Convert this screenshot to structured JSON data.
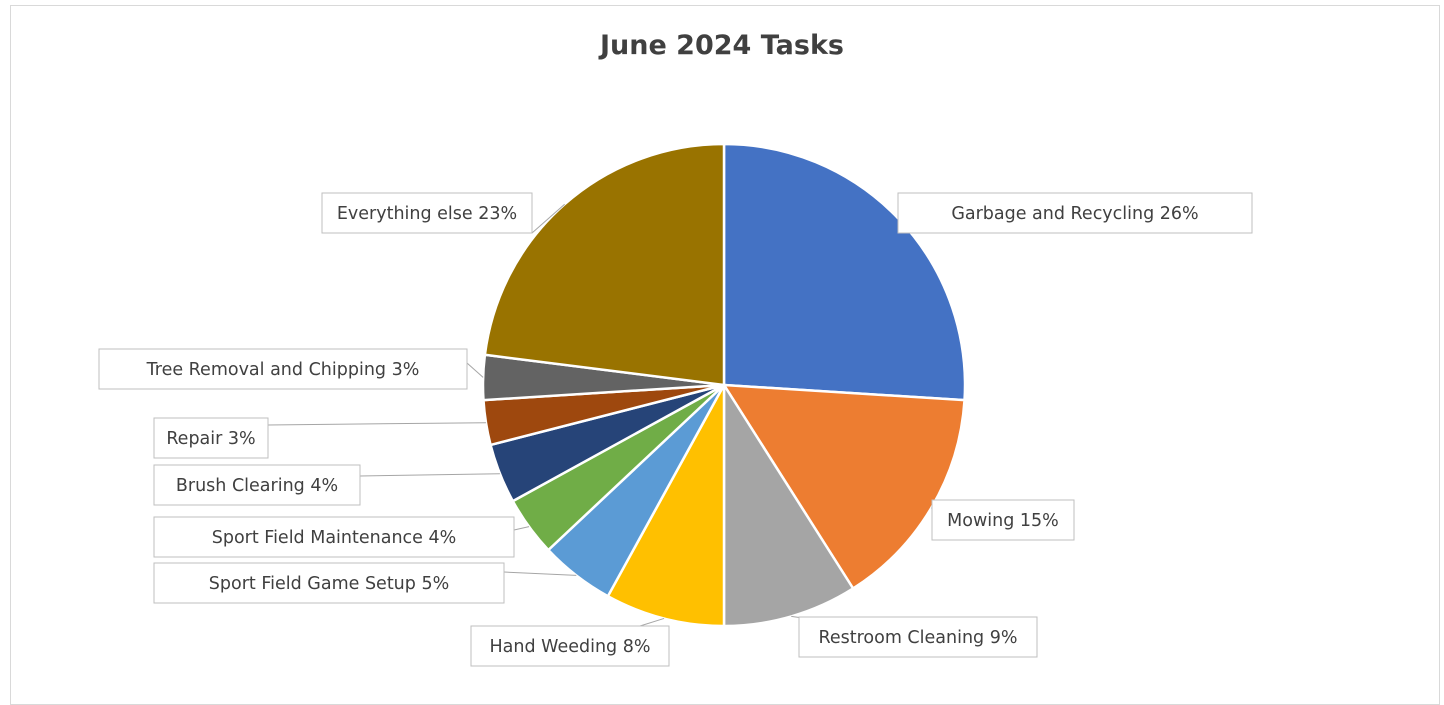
{
  "chart_data": {
    "type": "pie",
    "title": "June 2024 Tasks",
    "slices": [
      {
        "label": "Garbage and Recycling 26%",
        "value": 26,
        "color": "#4472C4"
      },
      {
        "label": "Mowing 15%",
        "value": 15,
        "color": "#ED7D31"
      },
      {
        "label": "Restroom Cleaning 9%",
        "value": 9,
        "color": "#A5A5A5"
      },
      {
        "label": "Hand Weeding 8%",
        "value": 8,
        "color": "#FFC000"
      },
      {
        "label": "Sport Field Game Setup 5%",
        "value": 5,
        "color": "#5B9BD5"
      },
      {
        "label": "Sport Field Maintenance 4%",
        "value": 4,
        "color": "#70AD47"
      },
      {
        "label": "Brush Clearing 4%",
        "value": 4,
        "color": "#264478"
      },
      {
        "label": "Repair 3%",
        "value": 3,
        "color": "#9E480E"
      },
      {
        "label": "Tree Removal and Chipping 3%",
        "value": 3,
        "color": "#636363"
      },
      {
        "label": "Everything else 23%",
        "value": 23,
        "color": "#997300"
      }
    ]
  }
}
